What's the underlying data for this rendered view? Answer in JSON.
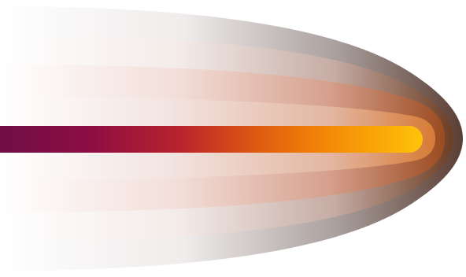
{
  "graphic": {
    "background": "#ffffff",
    "bands": [
      {
        "name": "outer-band",
        "colors": [
          "#ffffff",
          "#e7e4e2",
          "#a99f9c",
          "#5b3e34"
        ]
      },
      {
        "name": "middle-band",
        "colors": [
          "#ffffff",
          "#f3ebe8",
          "#c5aba3",
          "#6c3e24"
        ]
      },
      {
        "name": "inner-band",
        "colors": [
          "#ffffff",
          "#f2ded9",
          "#d6a08c",
          "#9b4b1f"
        ]
      },
      {
        "name": "core-band",
        "colors": [
          "#ffffff",
          "#f3e5e2",
          "#e2b6a0",
          "#d77a35"
        ]
      }
    ],
    "bar": {
      "colors": [
        "#6b0f46",
        "#8d0d43",
        "#b9252c",
        "#df5a11",
        "#f38907",
        "#ffc20a"
      ]
    }
  }
}
